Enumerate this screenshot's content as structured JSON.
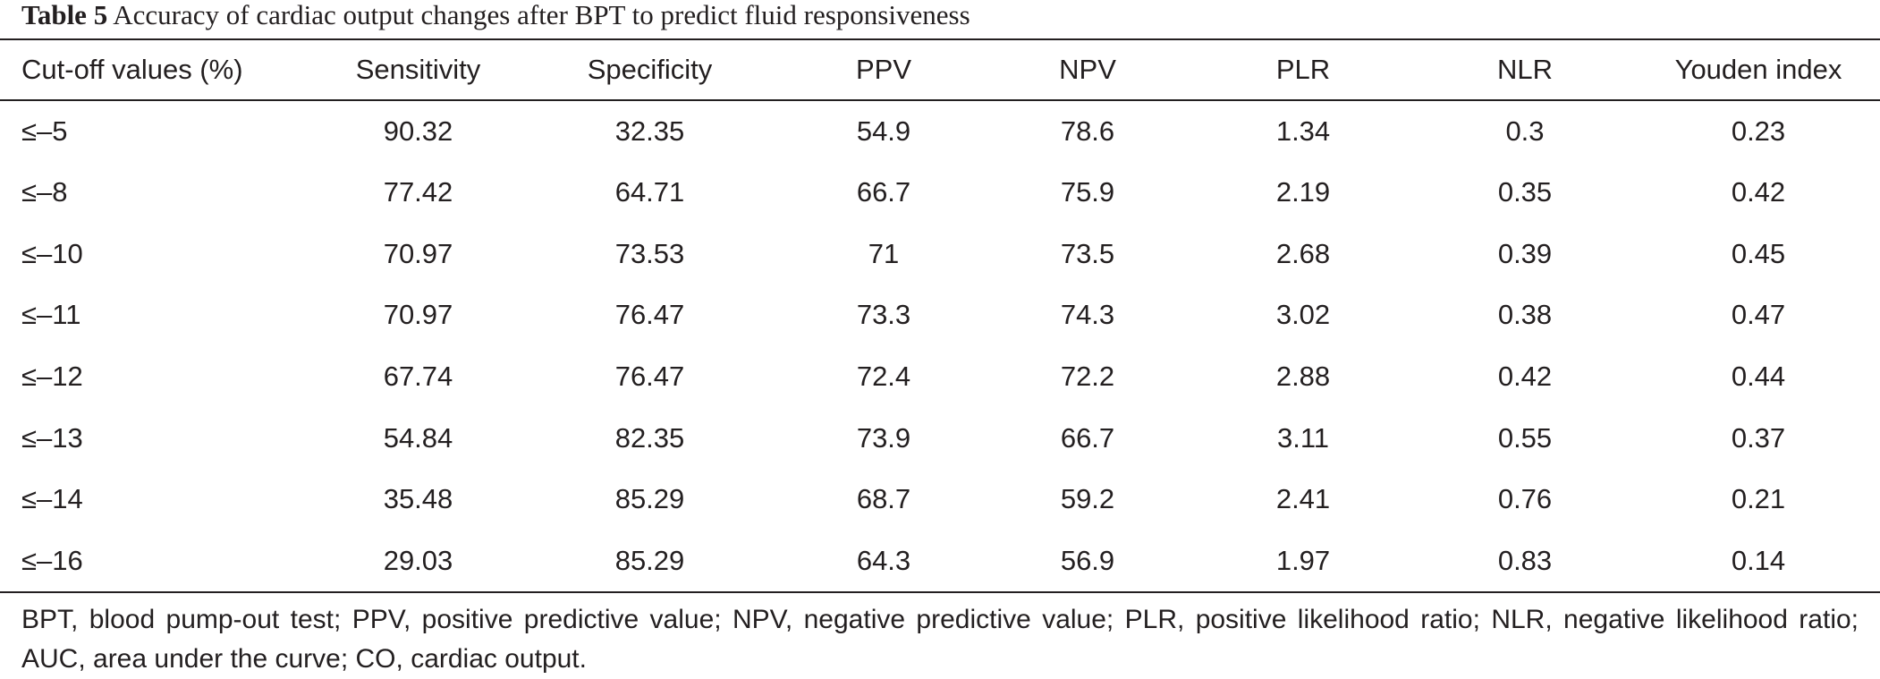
{
  "caption": {
    "label": "Table 5",
    "text": "Accuracy of cardiac output changes after BPT to predict fluid responsiveness"
  },
  "table": {
    "headers": [
      "Cut-off values (%)",
      "Sensitivity",
      "Specificity",
      "PPV",
      "NPV",
      "PLR",
      "NLR",
      "Youden index"
    ],
    "rows": [
      [
        "≤–5",
        "90.32",
        "32.35",
        "54.9",
        "78.6",
        "1.34",
        "0.3",
        "0.23"
      ],
      [
        "≤–8",
        "77.42",
        "64.71",
        "66.7",
        "75.9",
        "2.19",
        "0.35",
        "0.42"
      ],
      [
        "≤–10",
        "70.97",
        "73.53",
        "71",
        "73.5",
        "2.68",
        "0.39",
        "0.45"
      ],
      [
        "≤–11",
        "70.97",
        "76.47",
        "73.3",
        "74.3",
        "3.02",
        "0.38",
        "0.47"
      ],
      [
        "≤–12",
        "67.74",
        "76.47",
        "72.4",
        "72.2",
        "2.88",
        "0.42",
        "0.44"
      ],
      [
        "≤–13",
        "54.84",
        "82.35",
        "73.9",
        "66.7",
        "3.11",
        "0.55",
        "0.37"
      ],
      [
        "≤–14",
        "35.48",
        "85.29",
        "68.7",
        "59.2",
        "2.41",
        "0.76",
        "0.21"
      ],
      [
        "≤–16",
        "29.03",
        "85.29",
        "64.3",
        "56.9",
        "1.97",
        "0.83",
        "0.14"
      ]
    ]
  },
  "footnote": "BPT, blood pump-out test; PPV, positive predictive value; NPV, negative predictive value; PLR, positive likelihood ratio; NLR, negative likelihood ratio; AUC, area under the curve; CO, cardiac output."
}
